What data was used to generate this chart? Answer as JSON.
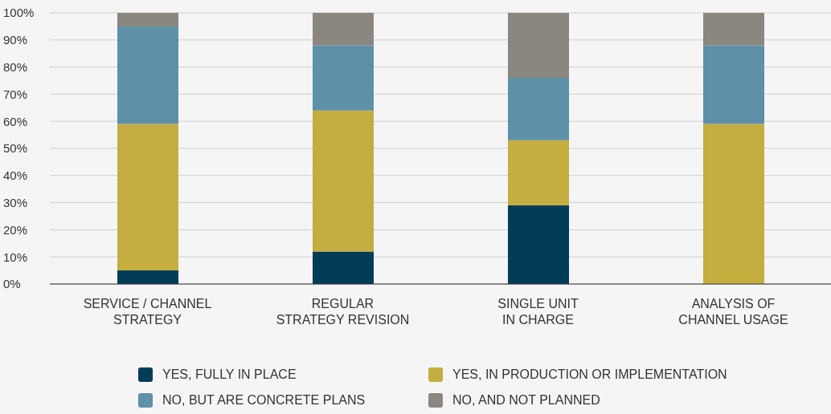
{
  "chart_data": {
    "type": "bar",
    "stacked": true,
    "categories": [
      "SERVICE / CHANNEL\nSTRATEGY",
      "REGULAR\nSTRATEGY REVISION",
      "SINGLE UNIT\nIN CHARGE",
      "ANALYSIS OF\nCHANNEL USAGE"
    ],
    "series": [
      {
        "name": "YES, FULLY IN PLACE",
        "color": "#023d57",
        "values": [
          5,
          12,
          29,
          0
        ]
      },
      {
        "name": "YES, IN PRODUCTION OR IMPLEMENTATION",
        "color": "#c3ae3f",
        "values": [
          54,
          52,
          24,
          59
        ]
      },
      {
        "name": "NO, BUT ARE CONCRETE PLANS",
        "color": "#5e90a8",
        "values": [
          36,
          24,
          23,
          29
        ]
      },
      {
        "name": "NO, AND NOT PLANNED",
        "color": "#8a8780",
        "values": [
          5,
          12,
          24,
          12
        ]
      }
    ],
    "ylim": [
      0,
      100
    ],
    "yticks": [
      {
        "value": 0,
        "label": "0%"
      },
      {
        "value": 10,
        "label": "10%"
      },
      {
        "value": 20,
        "label": "20%"
      },
      {
        "value": 30,
        "label": "30%"
      },
      {
        "value": 40,
        "label": "40%"
      },
      {
        "value": 50,
        "label": "50%"
      },
      {
        "value": 60,
        "label": "60%"
      },
      {
        "value": 70,
        "label": "70%"
      },
      {
        "value": 80,
        "label": "80%"
      },
      {
        "value": 90,
        "label": "90%"
      },
      {
        "value": 100,
        "label": "100%"
      }
    ],
    "grid": "y",
    "legend": "bottom"
  }
}
